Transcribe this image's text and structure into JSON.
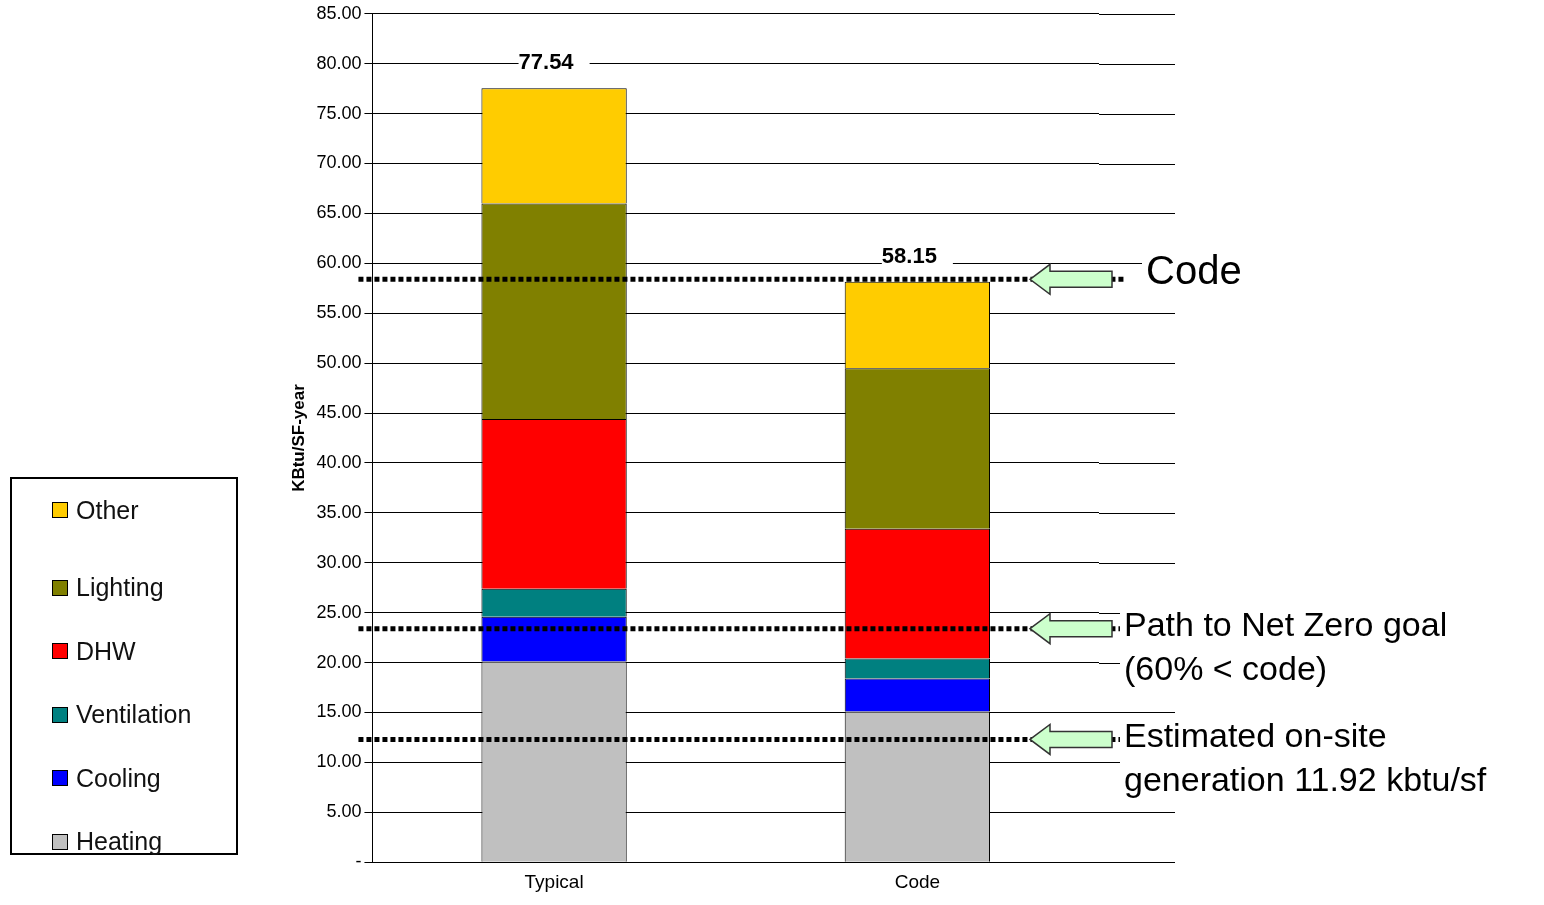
{
  "chart_data": {
    "type": "bar",
    "stacked": true,
    "ylabel": "KBtu/SF-year",
    "categories": [
      "Typical",
      "Code"
    ],
    "series": [
      {
        "name": "Heating",
        "color": "#c0c0c0",
        "values": [
          20.1,
          15.1
        ]
      },
      {
        "name": "Cooling",
        "color": "#0000ff",
        "values": [
          4.5,
          3.3
        ]
      },
      {
        "name": "Ventilation",
        "color": "#008080",
        "values": [
          2.8,
          2.0
        ]
      },
      {
        "name": "DHW",
        "color": "#ff0000",
        "values": [
          17.0,
          13.0
        ]
      },
      {
        "name": "Lighting",
        "color": "#808000",
        "values": [
          21.6,
          16.1
        ]
      },
      {
        "name": "Other",
        "color": "#ffcc00",
        "values": [
          11.54,
          8.65
        ]
      }
    ],
    "totals": [
      "77.54",
      "58.15"
    ],
    "ylim": [
      0,
      85
    ],
    "yticks": [
      {
        "value": 0,
        "label": "-"
      },
      {
        "value": 5,
        "label": "5.00"
      },
      {
        "value": 10,
        "label": "10.00"
      },
      {
        "value": 15,
        "label": "15.00"
      },
      {
        "value": 20,
        "label": "20.00"
      },
      {
        "value": 25,
        "label": "25.00"
      },
      {
        "value": 30,
        "label": "30.00"
      },
      {
        "value": 35,
        "label": "35.00"
      },
      {
        "value": 40,
        "label": "40.00"
      },
      {
        "value": 45,
        "label": "45.00"
      },
      {
        "value": 50,
        "label": "50.00"
      },
      {
        "value": 55,
        "label": "55.00"
      },
      {
        "value": 60,
        "label": "60.00"
      },
      {
        "value": 65,
        "label": "65.00"
      },
      {
        "value": 70,
        "label": "70.00"
      },
      {
        "value": 75,
        "label": "75.00"
      },
      {
        "value": 80,
        "label": "80.00"
      },
      {
        "value": 85,
        "label": "85.00"
      }
    ],
    "grid": "y",
    "legend": "left",
    "ref_lines": [
      {
        "axis": "y",
        "value": 58.4,
        "label": "Code",
        "color": "#000000",
        "line_style": "dotted"
      },
      {
        "axis": "y",
        "value": 23.4,
        "label": "Path to Net Zero goal (60% < code)",
        "color": "#000000",
        "line_style": "dotted"
      },
      {
        "axis": "y",
        "value": 12.3,
        "label": "Estimated on-site generation 11.92 kbtu/sf",
        "color": "#000000",
        "line_style": "dotted"
      }
    ]
  }
}
